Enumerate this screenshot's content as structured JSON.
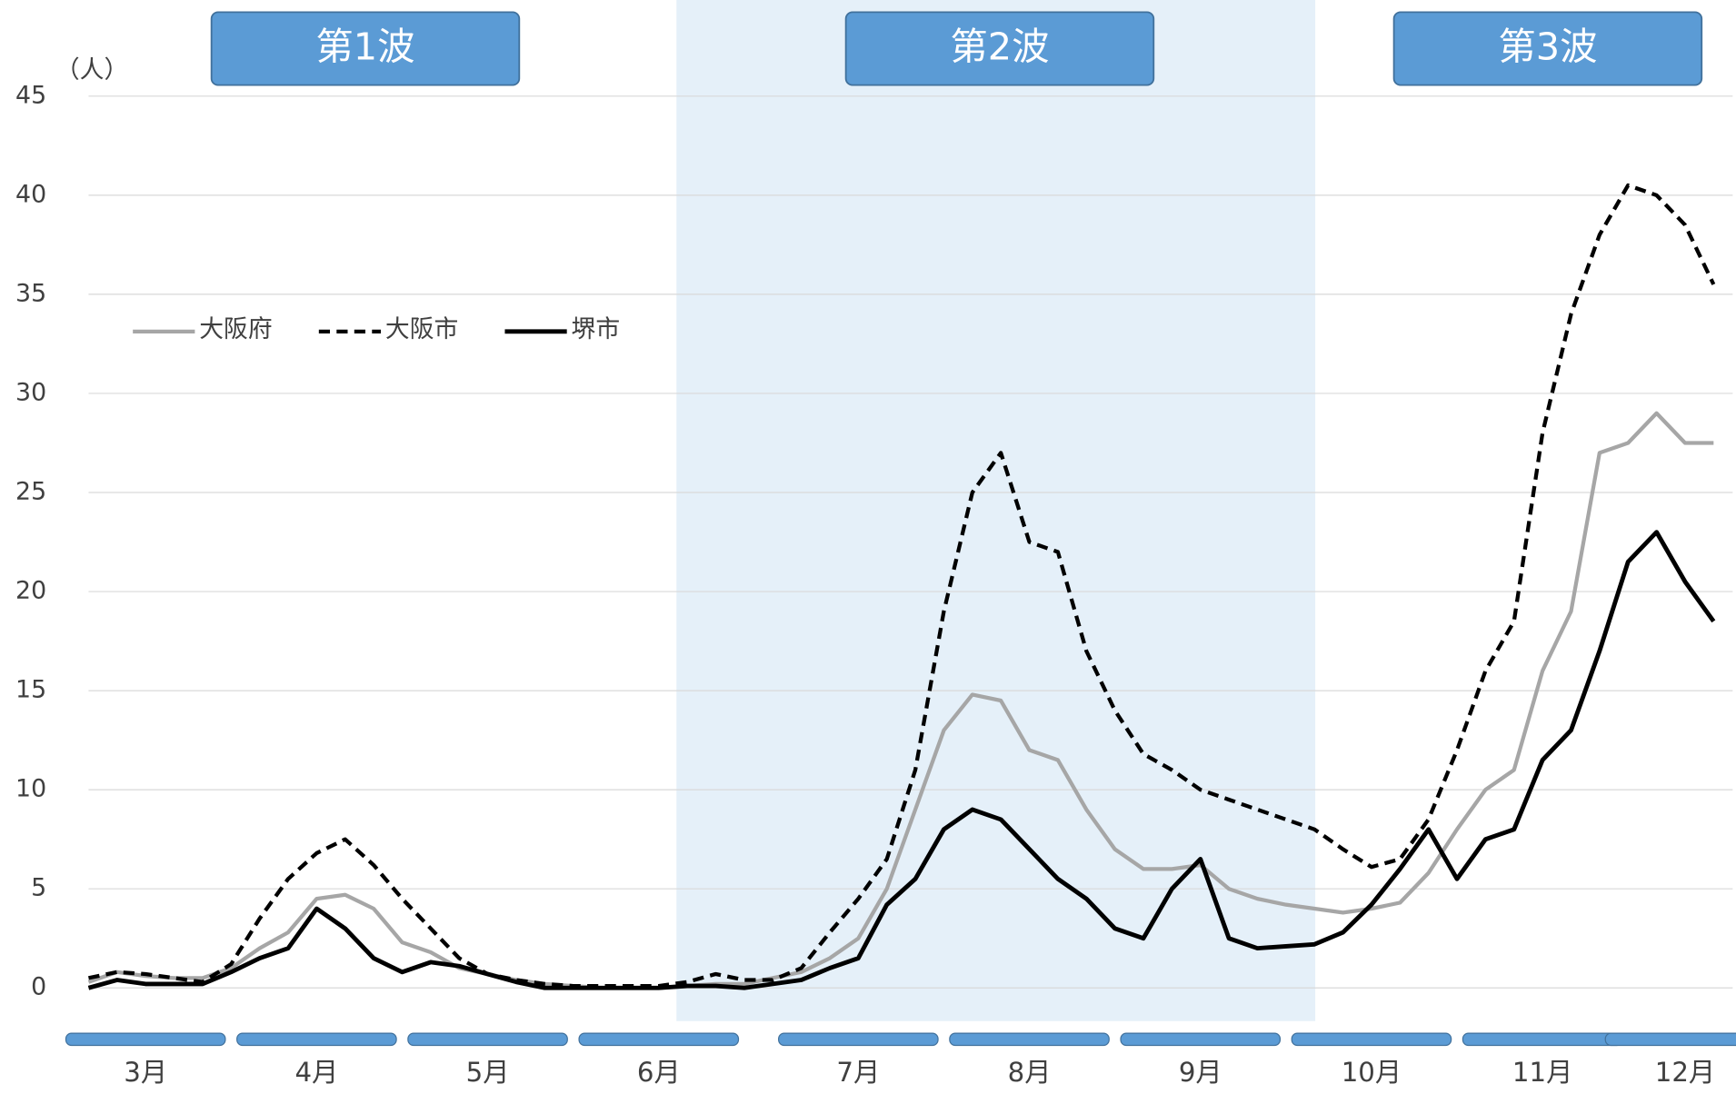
{
  "chart_data": {
    "type": "line",
    "y_label": "（人）",
    "annotations": [
      "第1波",
      "第2波",
      "第3波"
    ],
    "categories": [
      null,
      null,
      "3月",
      null,
      null,
      null,
      null,
      null,
      "4月",
      null,
      null,
      null,
      null,
      null,
      "5月",
      null,
      null,
      null,
      null,
      null,
      "6月",
      null,
      null,
      null,
      null,
      null,
      null,
      "7月",
      null,
      null,
      null,
      null,
      null,
      "8月",
      null,
      null,
      null,
      null,
      null,
      "9月",
      null,
      null,
      null,
      null,
      null,
      "10月",
      null,
      null,
      null,
      null,
      null,
      "11月",
      null,
      null,
      null,
      null,
      "12月",
      null
    ],
    "series": [
      {
        "name": "大阪府",
        "color": "#a6a6a6",
        "dashed": false,
        "values": [
          0.3,
          0.8,
          0.6,
          0.5,
          0.5,
          1,
          2,
          2.8,
          4.5,
          4.7,
          4,
          2.3,
          1.8,
          1,
          0.7,
          0.4,
          0.2,
          0.1,
          0,
          0,
          0,
          0.1,
          0.2,
          0.2,
          0.5,
          0.8,
          1.5,
          2.5,
          5,
          9,
          13,
          14.8,
          14.5,
          12,
          11.5,
          9,
          7,
          6,
          6,
          6.2,
          5,
          4.5,
          4.2,
          4,
          3.8,
          4,
          4.3,
          5.8,
          8,
          10,
          11,
          16,
          19,
          27,
          27.5,
          29,
          27.5,
          27.5
        ]
      },
      {
        "name": "大阪市",
        "color": "#000000",
        "dashed": true,
        "values": [
          0.5,
          0.8,
          0.7,
          0.5,
          0.3,
          1.2,
          3.5,
          5.5,
          6.8,
          7.5,
          6.2,
          4.5,
          3,
          1.5,
          0.7,
          0.4,
          0.2,
          0.1,
          0.1,
          0.1,
          0.1,
          0.3,
          0.7,
          0.4,
          0.4,
          1,
          2.8,
          4.5,
          6.5,
          11,
          19,
          25,
          27,
          22.5,
          22,
          17,
          14,
          11.8,
          11,
          10,
          9.5,
          9,
          8.5,
          8,
          7,
          6.1,
          6.5,
          8.5,
          12,
          16,
          18.5,
          28,
          34,
          38,
          40.5,
          40,
          38.5,
          35.5
        ]
      },
      {
        "name": "堺市",
        "color": "#000000",
        "dashed": false,
        "values": [
          0,
          0.4,
          0.2,
          0.2,
          0.2,
          0.8,
          1.5,
          2,
          4,
          3,
          1.5,
          0.8,
          1.3,
          1.1,
          0.7,
          0.3,
          0,
          0,
          0,
          0,
          0,
          0.1,
          0.1,
          0,
          0.2,
          0.4,
          1,
          1.5,
          4.2,
          5.5,
          8,
          9,
          8.5,
          7,
          5.5,
          4.5,
          3,
          2.5,
          5,
          6.5,
          2.5,
          2,
          2.1,
          2.2,
          2.8,
          4.2,
          6,
          8,
          5.5,
          7.5,
          8,
          11.5,
          13,
          17,
          21.5,
          23,
          20.5,
          18.5
        ]
      }
    ],
    "ylim": [
      0,
      45
    ],
    "yticks": [
      0,
      5,
      10,
      15,
      20,
      25,
      30,
      35,
      40,
      45
    ],
    "grid": true
  }
}
